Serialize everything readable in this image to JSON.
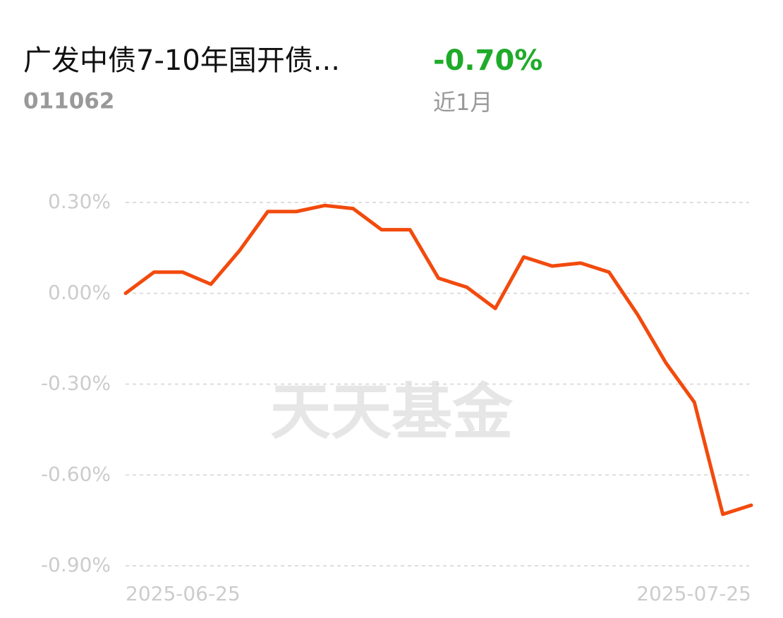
{
  "header": {
    "title": "广发中债7-10年国开债...",
    "code": "011062",
    "return": "-0.70%",
    "period": "近1月"
  },
  "watermark": "天天基金",
  "chart_data": {
    "type": "line",
    "categories": [
      "2025-06-25",
      null,
      null,
      null,
      null,
      null,
      null,
      null,
      null,
      null,
      null,
      null,
      null,
      null,
      null,
      null,
      null,
      null,
      null,
      null,
      null,
      null,
      "2025-07-25"
    ],
    "values": [
      0.0,
      0.07,
      0.07,
      0.03,
      0.14,
      0.27,
      0.27,
      0.29,
      0.28,
      0.21,
      0.21,
      0.05,
      0.02,
      -0.05,
      0.12,
      0.09,
      0.1,
      0.07,
      -0.07,
      -0.23,
      -0.36,
      -0.73,
      -0.7
    ],
    "color": "#f24a0d",
    "ylim": [
      -0.9,
      0.3
    ],
    "yticks": [
      {
        "value": 0.3,
        "label": "0.30%"
      },
      {
        "value": 0,
        "label": "0.00%"
      },
      {
        "value": -0.3,
        "label": "-0.30%"
      },
      {
        "value": -0.6,
        "label": "-0.60%"
      },
      {
        "value": -0.9,
        "label": "-0.90%"
      }
    ],
    "grid": true
  }
}
